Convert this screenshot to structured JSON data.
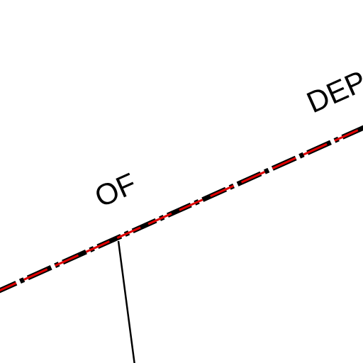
{
  "map": {
    "labels": {
      "of": "OF",
      "dep": "DEP"
    },
    "colors": {
      "background": "#ffffff",
      "boundary_fill": "#e00000",
      "boundary_outline": "#000000",
      "road": "#000000",
      "label": "#000000"
    },
    "features": [
      "boundary-line",
      "road-line"
    ]
  }
}
